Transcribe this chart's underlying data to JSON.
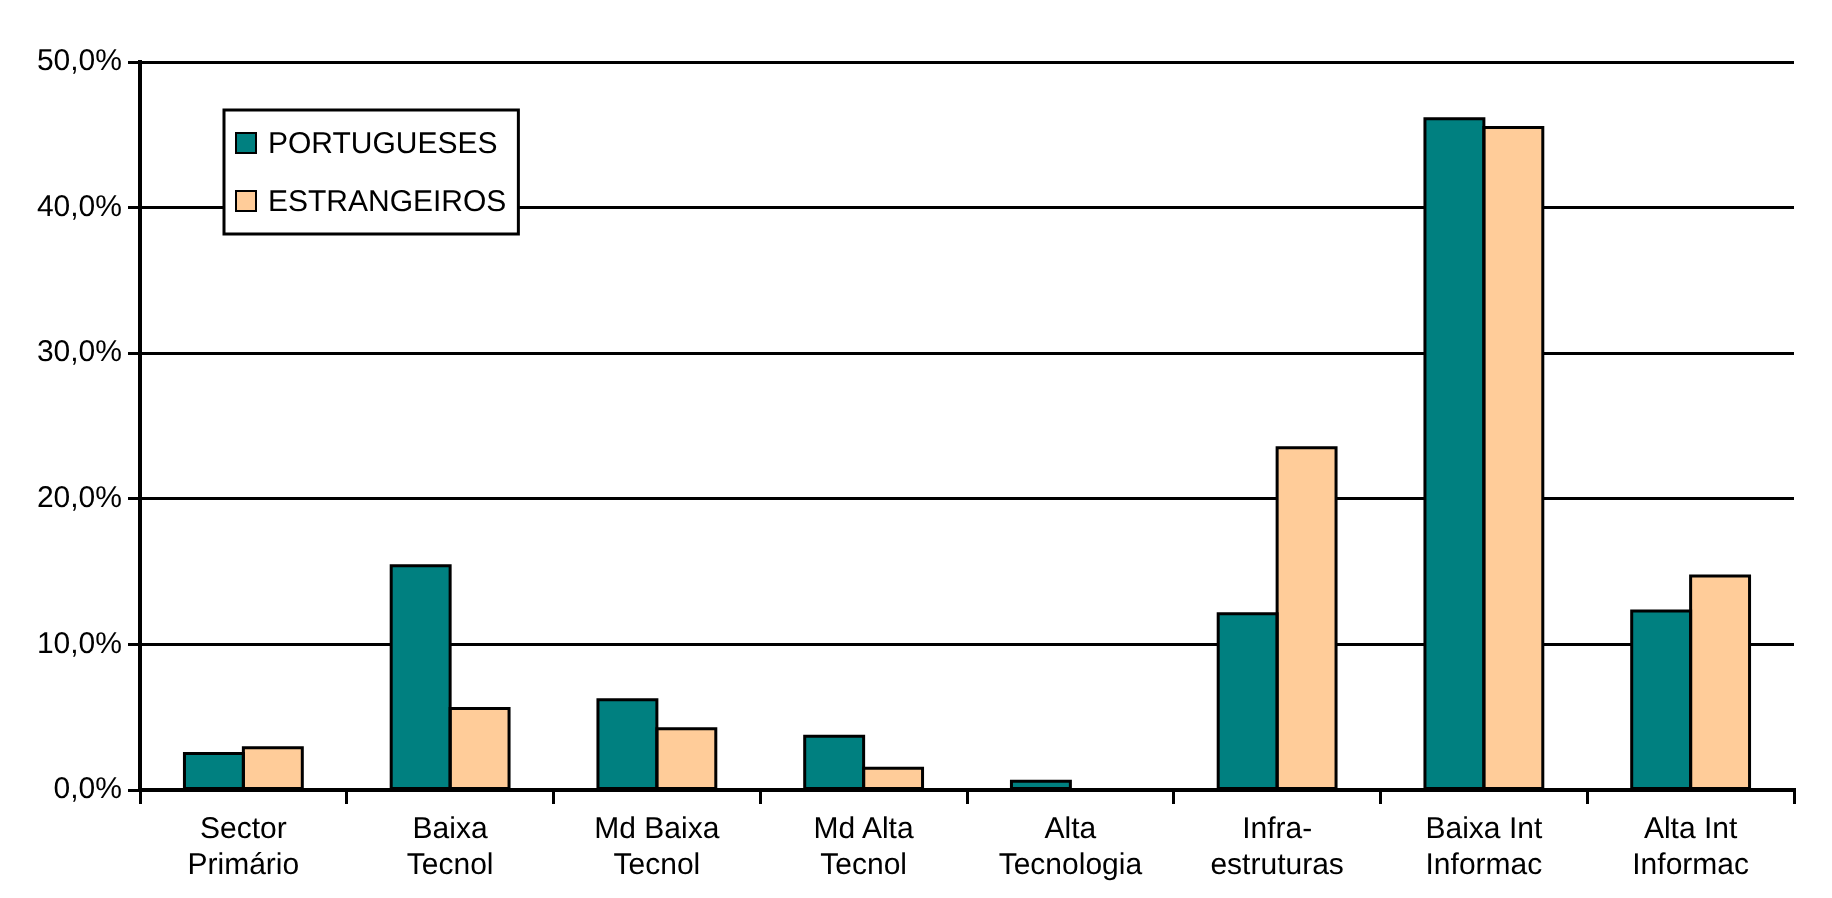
{
  "chart_data": {
    "type": "bar",
    "categories": [
      "Sector Primário",
      "Baixa Tecnol",
      "Md Baixa Tecnol",
      "Md Alta Tecnol",
      "Alta Tecnologia",
      "Infra-estruturas",
      "Baixa Int Informac",
      "Alta Int Informac"
    ],
    "series": [
      {
        "name": "PORTUGUESES",
        "color": "#008080",
        "values": [
          2.5,
          15.4,
          6.2,
          3.7,
          0.6,
          12.1,
          46.1,
          12.3
        ]
      },
      {
        "name": "ESTRANGEIROS",
        "color": "#ffcc99",
        "values": [
          2.9,
          5.6,
          4.2,
          1.5,
          0,
          23.5,
          45.5,
          14.7
        ]
      }
    ],
    "ylim": [
      0,
      50
    ],
    "yticks": [
      {
        "value": 0,
        "label": "0,0%"
      },
      {
        "value": 10,
        "label": "10,0%"
      },
      {
        "value": 20,
        "label": "20,0%"
      },
      {
        "value": 30,
        "label": "30,0%"
      },
      {
        "value": 40,
        "label": "40,0%"
      },
      {
        "value": 50,
        "label": "50,0%"
      }
    ],
    "grid": "y",
    "legend": "top left"
  }
}
